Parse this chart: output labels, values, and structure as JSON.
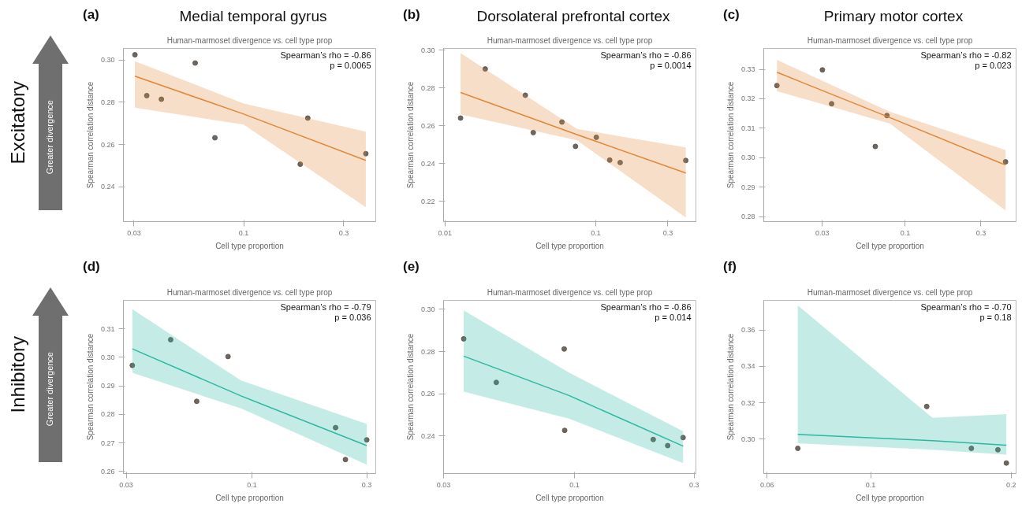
{
  "chart_data": [
    {
      "type": "scatter",
      "title": "Medial temporal gyrus",
      "subtitle": "Human-marmoset divergence vs. cell type prop",
      "xlabel": "Cell type proportion",
      "ylabel": "Spearman correlation distance",
      "annotations": [
        "(a)",
        "Spearman’s rho = -0.86",
        "p = 0.0065",
        "Excitatory",
        "Greater divergence"
      ],
      "log": "x",
      "xlim": [
        0.0267,
        0.426
      ],
      "ylim": [
        0.2236,
        0.3054
      ],
      "xticks": [
        0.03,
        0.1,
        0.3
      ],
      "yticks": [
        {
          "value": 0.24,
          "label": "0.24"
        },
        {
          "value": 0.26,
          "label": "0.26"
        },
        {
          "value": 0.28,
          "label": "0.28"
        },
        {
          "value": 0.3,
          "label": "0.30"
        }
      ],
      "series": [
        {
          "marker": "circle",
          "color": "#5e554e",
          "x": [
            0.0303,
            0.0345,
            0.0405,
            0.0587,
            0.0729,
            0.186,
            0.202,
            0.382
          ],
          "values": [
            0.3024,
            0.2831,
            0.2814,
            0.2985,
            0.2632,
            0.2507,
            0.2725,
            0.2557
          ]
        },
        {
          "type": "line",
          "color": "#e0883a",
          "x": [
            0.0303,
            0.1,
            0.382
          ],
          "marker": "none",
          "values": [
            0.2923,
            0.2744,
            0.2525
          ],
          "lower": [
            0.2774,
            0.2694,
            0.2304
          ],
          "upper": [
            0.2994,
            0.2794,
            0.2661
          ]
        }
      ]
    },
    {
      "type": "scatter",
      "title": "Dorsolateral prefrontal cortex",
      "subtitle": "Human-marmoset divergence vs. cell type prop",
      "xlabel": "Cell type proportion",
      "ylabel": "Spearman correlation distance",
      "annotations": [
        "(b)",
        "Spearman’s rho = -0.86",
        "p = 0.0014"
      ],
      "log": "x",
      "xlim": [
        0.0098,
        0.46
      ],
      "ylim": [
        0.2092,
        0.301
      ],
      "xticks": [
        0.01,
        0.1,
        0.3
      ],
      "yticks": [
        {
          "value": 0.22,
          "label": "0.22"
        },
        {
          "value": 0.24,
          "label": "0.24"
        },
        {
          "value": 0.26,
          "label": "0.26"
        },
        {
          "value": 0.28,
          "label": "0.28"
        },
        {
          "value": 0.3,
          "label": "0.30"
        }
      ],
      "series": [
        {
          "marker": "circle",
          "color": "#5e554e",
          "x": [
            0.0127,
            0.0185,
            0.0341,
            0.0385,
            0.0596,
            0.0733,
            0.1007,
            0.1235,
            0.1449,
            0.394
          ],
          "values": [
            0.2641,
            0.2901,
            0.2762,
            0.2564,
            0.262,
            0.2491,
            0.2539,
            0.2418,
            0.2405,
            0.2416
          ]
        },
        {
          "type": "line",
          "color": "#e0883a",
          "x": [
            0.0127,
            0.075,
            0.394
          ],
          "marker": "none",
          "values": [
            0.2776,
            0.2553,
            0.235
          ],
          "lower": [
            0.2661,
            0.2523,
            0.2114
          ],
          "upper": [
            0.2985,
            0.2583,
            0.2485
          ]
        }
      ]
    },
    {
      "type": "scatter",
      "title": "Primary motor cortex",
      "subtitle": "Human-marmoset divergence vs. cell type prop",
      "xlabel": "Cell type proportion",
      "ylabel": "Spearman correlation distance",
      "annotations": [
        "(c)",
        "Spearman’s rho = -0.82",
        "p = 0.023"
      ],
      "log": "x",
      "xlim": [
        0.0128,
        0.5
      ],
      "ylim": [
        0.2783,
        0.3371
      ],
      "xticks": [
        0.03,
        0.1,
        0.3
      ],
      "yticks": [
        {
          "value": 0.28,
          "label": "0.28"
        },
        {
          "value": 0.29,
          "label": "0.29"
        },
        {
          "value": 0.3,
          "label": "0.30"
        },
        {
          "value": 0.31,
          "label": "0.31"
        },
        {
          "value": 0.32,
          "label": "0.32"
        },
        {
          "value": 0.33,
          "label": "0.33"
        }
      ],
      "series": [
        {
          "marker": "circle",
          "color": "#5e554e",
          "x": [
            0.0155,
            0.03,
            0.0343,
            0.0766,
            0.0647,
            0.429
          ],
          "values": [
            0.3245,
            0.3298,
            0.3183,
            0.3143,
            0.3038,
            0.2986
          ]
        },
        {
          "type": "line",
          "color": "#e0883a",
          "x": [
            0.0155,
            0.08,
            0.429
          ],
          "marker": "none",
          "values": [
            0.329,
            0.3136,
            0.2975
          ],
          "lower": [
            0.3226,
            0.3116,
            0.2821
          ],
          "upper": [
            0.3332,
            0.3156,
            0.3026
          ]
        }
      ]
    },
    {
      "type": "scatter",
      "subtitle": "Human-marmoset divergence vs. cell type prop",
      "xlabel": "Cell type proportion",
      "ylabel": "Spearman correlation distance",
      "annotations": [
        "(d)",
        "Spearman’s rho = -0.79",
        "p = 0.036",
        "Inhibitory",
        "Greater divergence"
      ],
      "log": "x",
      "xlim": [
        0.0292,
        0.327
      ],
      "ylim": [
        0.2593,
        0.32
      ],
      "xticks": [
        0.03,
        0.1,
        0.3
      ],
      "yticks": [
        {
          "value": 0.26,
          "label": "0.26"
        },
        {
          "value": 0.27,
          "label": "0.27"
        },
        {
          "value": 0.28,
          "label": "0.28"
        },
        {
          "value": 0.29,
          "label": "0.29"
        },
        {
          "value": 0.3,
          "label": "0.30"
        },
        {
          "value": 0.31,
          "label": "0.31"
        }
      ],
      "series": [
        {
          "marker": "circle",
          "color": "#5e554e",
          "x": [
            0.0318,
            0.0459,
            0.0589,
            0.0795,
            0.2226,
            0.2446,
            0.3
          ],
          "values": [
            0.2972,
            0.3062,
            0.2846,
            0.3003,
            0.2754,
            0.2642,
            0.2711
          ]
        },
        {
          "type": "line",
          "color": "#2bb8a2",
          "x": [
            0.0318,
            0.09,
            0.3
          ],
          "marker": "none",
          "values": [
            0.303,
            0.2865,
            0.2691
          ],
          "lower": [
            0.2946,
            0.2821,
            0.2624
          ],
          "upper": [
            0.3169,
            0.2919,
            0.2767
          ]
        }
      ]
    },
    {
      "type": "scatter",
      "subtitle": "Human-marmoset divergence vs. cell type prop",
      "xlabel": "Cell type proportion",
      "ylabel": "Spearman correlation distance",
      "annotations": [
        "(e)",
        "Spearman’s rho = -0.86",
        "p = 0.014"
      ],
      "log": "x",
      "xlim": [
        0.03,
        0.305
      ],
      "ylim": [
        0.2223,
        0.3042
      ],
      "xticks": [
        0.03,
        0.1,
        0.3
      ],
      "yticks": [
        {
          "value": 0.24,
          "label": "0.24"
        },
        {
          "value": 0.26,
          "label": "0.26"
        },
        {
          "value": 0.28,
          "label": "0.28"
        },
        {
          "value": 0.3,
          "label": "0.30"
        }
      ],
      "series": [
        {
          "marker": "circle",
          "color": "#5e554e",
          "x": [
            0.0361,
            0.0487,
            0.0909,
            0.0913,
            0.206,
            0.2353,
            0.2711
          ],
          "values": [
            0.286,
            0.2654,
            0.2812,
            0.2427,
            0.2384,
            0.2355,
            0.2393
          ]
        },
        {
          "type": "line",
          "color": "#2bb8a2",
          "x": [
            0.0361,
            0.095,
            0.2711
          ],
          "marker": "none",
          "values": [
            0.2778,
            0.2592,
            0.2353
          ],
          "lower": [
            0.261,
            0.2483,
            0.2272
          ],
          "upper": [
            0.2995,
            0.27,
            0.2423
          ]
        }
      ]
    },
    {
      "type": "scatter",
      "subtitle": "Human-marmoset divergence vs. cell type prop",
      "xlabel": "Cell type proportion",
      "ylabel": "Spearman correlation distance",
      "annotations": [
        "(f)",
        "Spearman’s rho = -0.70",
        "p = 0.18"
      ],
      "log": "x",
      "xlim": [
        0.059,
        0.205
      ],
      "ylim": [
        0.2809,
        0.3765
      ],
      "xticks": [
        0.06,
        0.1,
        0.2
      ],
      "yticks": [
        {
          "value": 0.3,
          "label": "0.30"
        },
        {
          "value": 0.32,
          "label": "0.32"
        },
        {
          "value": 0.34,
          "label": "0.34"
        },
        {
          "value": 0.36,
          "label": "0.36"
        }
      ],
      "series": [
        {
          "marker": "circle",
          "color": "#5e554e",
          "x": [
            0.0698,
            0.1319,
            0.1644,
            0.1874,
            0.1954
          ],
          "values": [
            0.2948,
            0.3179,
            0.2948,
            0.294,
            0.2867
          ]
        },
        {
          "type": "line",
          "color": "#2bb8a2",
          "x": [
            0.0698,
            0.1357,
            0.1954
          ],
          "marker": "none",
          "values": [
            0.3025,
            0.299,
            0.2965
          ],
          "lower": [
            0.2976,
            0.294,
            0.2913
          ],
          "upper": [
            0.3737,
            0.3116,
            0.3137
          ]
        }
      ]
    }
  ]
}
